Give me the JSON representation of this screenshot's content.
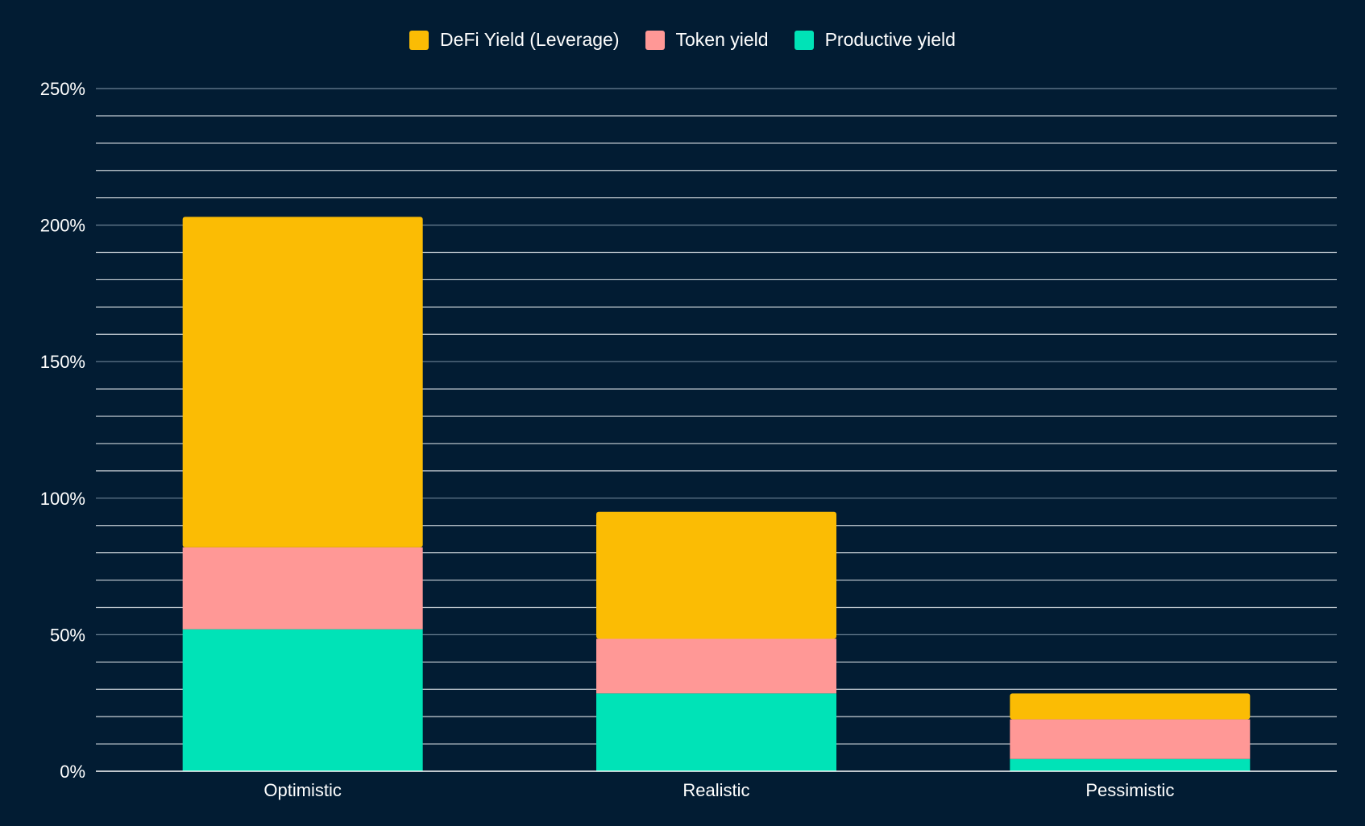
{
  "chart_data": {
    "type": "bar",
    "stacked": true,
    "categories": [
      "Optimistic",
      "Realistic",
      "Pessimistic"
    ],
    "series": [
      {
        "name": "Productive yield",
        "color": "#00e3b7",
        "values": [
          52,
          28.5,
          4.5
        ]
      },
      {
        "name": "Token yield",
        "color": "#ff9896",
        "values": [
          30,
          20,
          14.5
        ]
      },
      {
        "name": "DeFi Yield (Leverage)",
        "color": "#fbbc04",
        "values": [
          121,
          46.5,
          9.5
        ]
      }
    ],
    "legend_order": [
      "DeFi Yield (Leverage)",
      "Token yield",
      "Productive yield"
    ],
    "yticks": [
      "0%",
      "50%",
      "100%",
      "150%",
      "200%",
      "250%"
    ],
    "ylim": [
      0,
      250
    ],
    "minor_gridline_step": 10,
    "grid": true,
    "legend_position": "top-center",
    "background": "#021c33"
  }
}
